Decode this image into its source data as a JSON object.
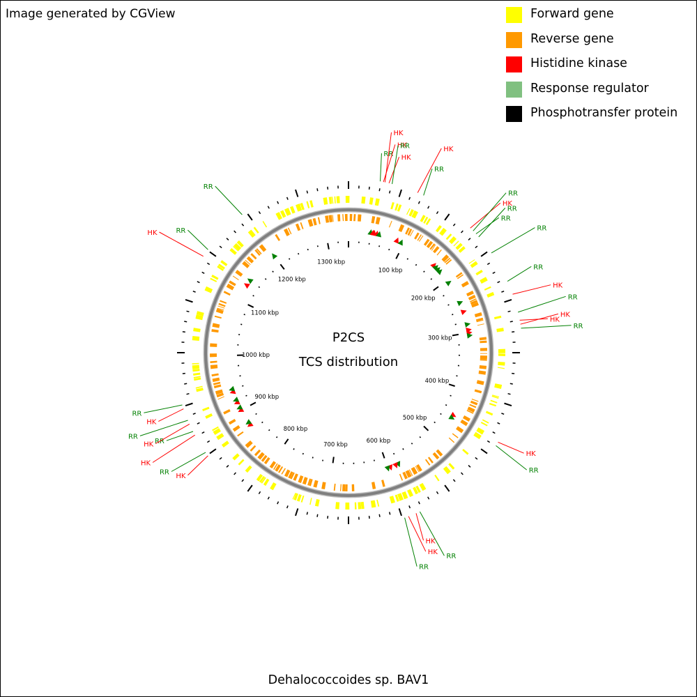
{
  "credit": "Image generated by CGView",
  "legend": [
    {
      "label": "Forward gene",
      "color": "#ffff00"
    },
    {
      "label": "Reverse gene",
      "color": "#ff9900"
    },
    {
      "label": "Histidine kinase",
      "color": "#ff0000"
    },
    {
      "label": "Response regulator",
      "color": "#80c080"
    },
    {
      "label": "Phosphotransfer protein",
      "color": "#000000"
    }
  ],
  "map": {
    "center_title": "P2CS",
    "center_subtitle": "TCS distribution",
    "genome_kbp": 1340,
    "kbp_labels": [
      "100 kbp",
      "200 kbp",
      "300 kbp",
      "400 kbp",
      "500 kbp",
      "600 kbp",
      "700 kbp",
      "800 kbp",
      "900 kbp",
      "1000 kbp",
      "1100 kbp",
      "1200 kbp",
      "1300 kbp"
    ],
    "colors": {
      "forward": "#ffff00",
      "reverse": "#ff9900",
      "hk": "#ff0000",
      "rr": "#008000",
      "backbone": "#7f7f7f",
      "ticks": "#000000"
    },
    "features": [
      {
        "pos": 39,
        "type": "RR",
        "label": "RR"
      },
      {
        "pos": 43,
        "type": "HK",
        "label": "HK"
      },
      {
        "pos": 45,
        "type": "HK",
        "label": "HK"
      },
      {
        "pos": 50,
        "type": "HK",
        "label": "HK"
      },
      {
        "pos": 54,
        "type": "RR",
        "label": "RR"
      },
      {
        "pos": 87,
        "type": "HK",
        "label": "HK"
      },
      {
        "pos": 95,
        "type": "RR",
        "label": "RR"
      },
      {
        "pos": 165,
        "type": "HK",
        "label": "HK"
      },
      {
        "pos": 170,
        "type": "RR",
        "label": "RR"
      },
      {
        "pos": 175,
        "type": "RR",
        "label": "RR"
      },
      {
        "pos": 180,
        "type": "RR",
        "label": "RR"
      },
      {
        "pos": 205,
        "type": "RR",
        "label": "RR"
      },
      {
        "pos": 245,
        "type": "RR",
        "label": "RR"
      },
      {
        "pos": 262,
        "type": "HK",
        "label": "HK"
      },
      {
        "pos": 285,
        "type": "RR",
        "label": "RR"
      },
      {
        "pos": 295,
        "type": "HK",
        "label": "HK"
      },
      {
        "pos": 300,
        "type": "HK",
        "label": "HK"
      },
      {
        "pos": 305,
        "type": "RR",
        "label": "RR"
      },
      {
        "pos": 450,
        "type": "HK",
        "label": "HK"
      },
      {
        "pos": 455,
        "type": "RR",
        "label": "RR"
      },
      {
        "pos": 580,
        "type": "RR",
        "label": "RR"
      },
      {
        "pos": 585,
        "type": "HK",
        "label": "HK"
      },
      {
        "pos": 595,
        "type": "HK",
        "label": "HK"
      },
      {
        "pos": 600,
        "type": "RR",
        "label": "RR"
      },
      {
        "pos": 870,
        "type": "HK",
        "label": "HK"
      },
      {
        "pos": 875,
        "type": "RR",
        "label": "RR"
      },
      {
        "pos": 900,
        "type": "HK",
        "label": "HK"
      },
      {
        "pos": 905,
        "type": "RR",
        "label": "RR"
      },
      {
        "pos": 915,
        "type": "HK",
        "label": "HK"
      },
      {
        "pos": 920,
        "type": "RR",
        "label": "RR"
      },
      {
        "pos": 935,
        "type": "HK",
        "label": "HK"
      },
      {
        "pos": 940,
        "type": "RR",
        "label": "RR"
      },
      {
        "pos": 1130,
        "type": "HK",
        "label": "HK"
      },
      {
        "pos": 1140,
        "type": "RR",
        "label": "RR"
      },
      {
        "pos": 1200,
        "type": "RR",
        "label": "RR"
      }
    ]
  },
  "caption": "Dehalococcoides sp. BAV1"
}
